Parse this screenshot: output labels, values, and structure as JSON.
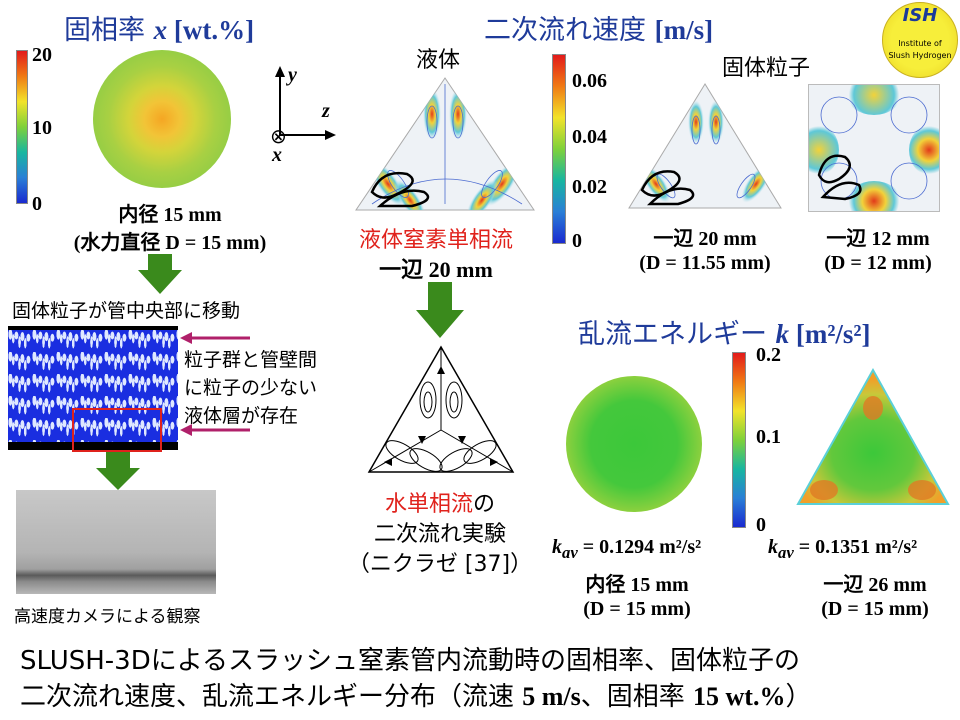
{
  "solid_fraction": {
    "title_prefix": "固相率 ",
    "title_var": "x",
    "title_unit": " [wt.%]",
    "colorbar_ticks": [
      "20",
      "10",
      "0"
    ],
    "pipe_label_1": "内径 15 mm",
    "pipe_label_2": "(水力直径 D = 15 mm)"
  },
  "axes": {
    "y": "y",
    "z": "z",
    "x": "x",
    "x_symbol": "⊗"
  },
  "logo": {
    "name": "ISH",
    "line1": "Institute of",
    "line2": "Slush Hydrogen"
  },
  "secondary_flow": {
    "title_prefix": "二次流れ速度 ",
    "title_unit": "[m/s]",
    "liquid_label": "液体",
    "solid_label": "固体粒子",
    "colorbar_ticks": [
      "0.06",
      "0.04",
      "0.02",
      "0"
    ],
    "liquid_caption_1": "液体窒素単相流",
    "liquid_caption_2": "一辺 20 mm",
    "tri_caption_1": "一辺 20 mm",
    "tri_caption_2": "(D = 11.55 mm)",
    "sq_caption_1": "一辺 12 mm",
    "sq_caption_2": "(D = 12 mm)"
  },
  "experiment": {
    "caption_red": "水単相流",
    "caption_no": "の",
    "caption_2": "二次流れ実験",
    "caption_3": "（ニクラゼ [37]）"
  },
  "pipe_flow": {
    "label_top": "固体粒子が管中央部に移動",
    "annotation_1": "粒子群と管壁間",
    "annotation_2": "に粒子の少ない",
    "annotation_3": "液体層が存在",
    "camera_label": "高速度カメラによる観察"
  },
  "turbulence": {
    "title_prefix": "乱流エネルギー ",
    "title_var": "k",
    "title_unit": " [m²/s²]",
    "colorbar_ticks": [
      "0.2",
      "0.1",
      "0"
    ],
    "circle_kav": "= 0.1294 m²/s²",
    "circle_label_1": "内径 15 mm",
    "circle_label_2": "(D = 15 mm)",
    "tri_kav": "= 0.1351 m²/s²",
    "tri_label_1": "一辺 26 mm",
    "tri_label_2": "(D = 15 mm)",
    "kav_symbol": "k",
    "kav_sub": "av"
  },
  "caption": {
    "line1": "SLUSH-3Dによるスラッシュ窒素管内流動時の固相率、固体粒子の",
    "line2_pre": "二次流れ速度、乱流エネルギー分布（流速 ",
    "line2_speed": "5 m/s",
    "line2_mid": "、固相率 ",
    "line2_frac": "15 wt.%",
    "line2_post": "）"
  },
  "colors": {
    "title_blue": "#1f3b9a",
    "accent_red": "#e0221c",
    "arrow_green": "#3a8a1c",
    "annotation_magenta": "#b0206a"
  }
}
